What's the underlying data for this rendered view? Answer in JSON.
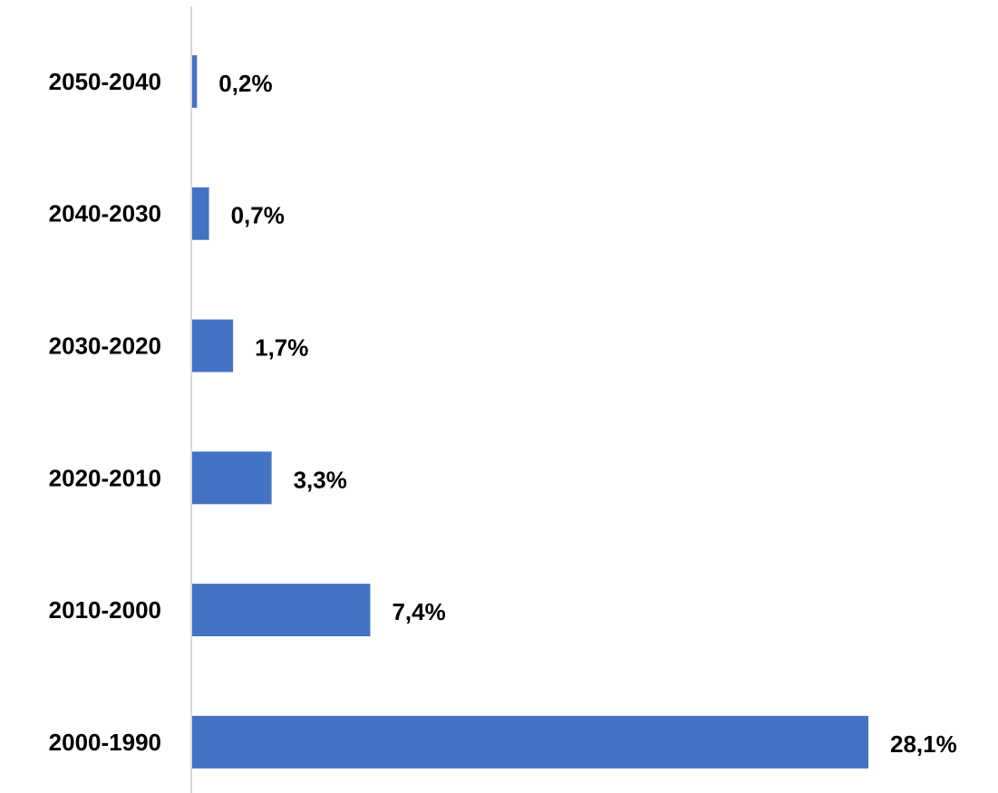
{
  "colors": {
    "bar": "#4472C4",
    "axis": "#D9D9D9",
    "text": "#000000",
    "background": "#FFFFFF"
  },
  "chart_data": {
    "type": "bar",
    "orientation": "horizontal",
    "categories": [
      "2050-2040",
      "2040-2030",
      "2030-2020",
      "2020-2010",
      "2010-2000",
      "2000-1990"
    ],
    "values": [
      0.2,
      0.7,
      1.7,
      3.3,
      7.4,
      28.1
    ],
    "value_labels": [
      "0,2%",
      "0,7%",
      "1,7%",
      "3,3%",
      "7,4%",
      "28,1%"
    ],
    "title": "",
    "xlabel": "",
    "ylabel": "",
    "xlim": [
      0,
      28.1
    ],
    "grid": false,
    "legend": "none"
  }
}
